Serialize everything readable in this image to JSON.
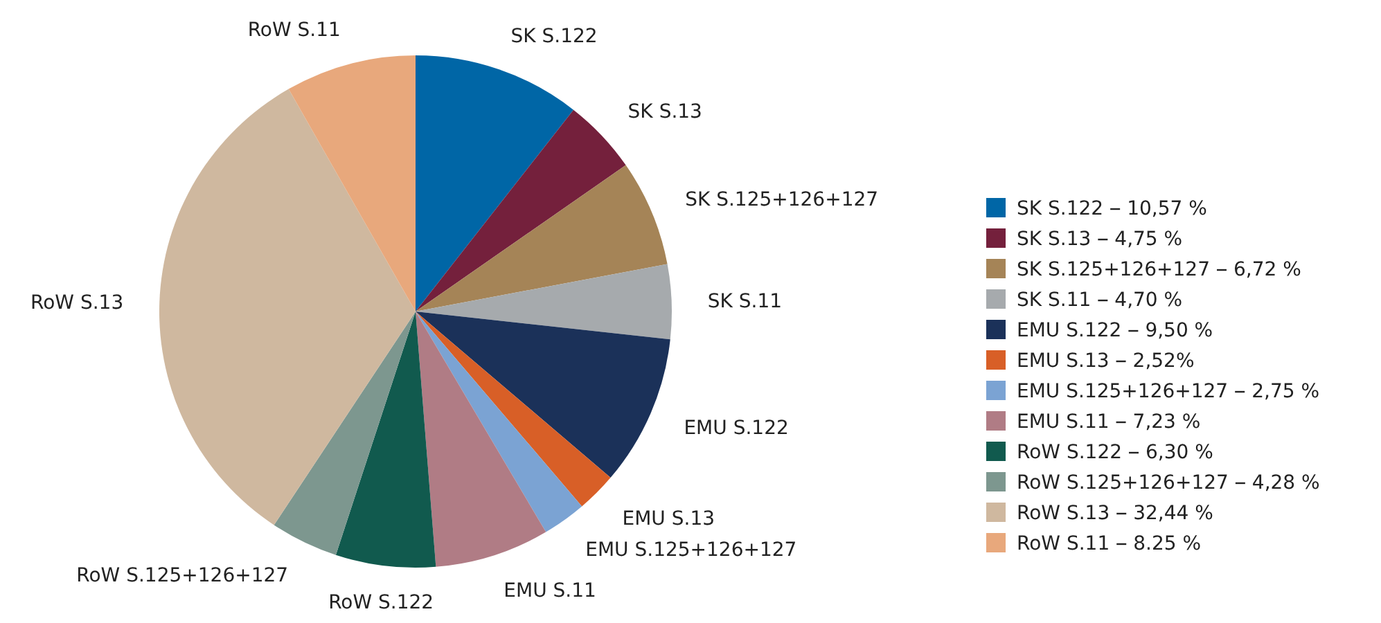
{
  "chart_data": {
    "type": "pie",
    "categories": [
      "SK S.122",
      "SK S.13",
      "SK S.125+126+127",
      "SK S.11",
      "EMU S.122",
      "EMU S.13",
      "EMU S.125+126+127",
      "EMU S.11",
      "RoW S.122",
      "RoW S.125+126+127",
      "RoW S.13",
      "RoW S.11"
    ],
    "values": [
      10.57,
      4.75,
      6.72,
      4.7,
      9.5,
      2.52,
      2.75,
      7.23,
      6.3,
      4.28,
      32.44,
      8.25
    ],
    "value_labels": [
      "10,57 %",
      "4,75 %",
      "6,72 %",
      "4,70 %",
      "9,50 %",
      "2,52%",
      "2,75 %",
      "7,23 %",
      "6,30 %",
      "4,28 %",
      "32,44 %",
      "8.25 %"
    ],
    "colors": [
      "#0066a6",
      "#74203c",
      "#a58457",
      "#a6aaad",
      "#1b3159",
      "#d85f27",
      "#7ba3d3",
      "#b07c85",
      "#115a4e",
      "#7d978f",
      "#cfb89f",
      "#e8a87c"
    ],
    "legend": "right"
  }
}
